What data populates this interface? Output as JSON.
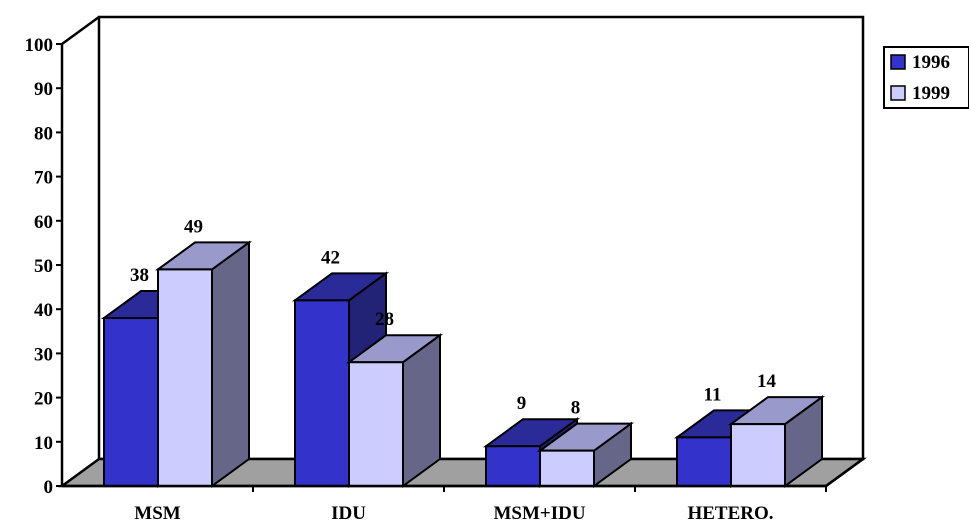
{
  "chart_data": {
    "type": "bar",
    "title": "",
    "xlabel": "",
    "ylabel": "",
    "categories": [
      "MSM",
      "IDU",
      "MSM+IDU",
      "HETERO."
    ],
    "series": [
      {
        "name": "1996",
        "values": [
          38,
          42,
          9,
          11
        ],
        "color": "#3333cc",
        "top_color": "#2a2a99",
        "side_color": "#222277"
      },
      {
        "name": "1999",
        "values": [
          49,
          28,
          8,
          14
        ],
        "color": "#ccccff",
        "top_color": "#9999cc",
        "side_color": "#666688"
      }
    ],
    "ylim": [
      0,
      100
    ],
    "yticks": [
      0,
      10,
      20,
      30,
      40,
      50,
      60,
      70,
      80,
      90,
      100
    ],
    "legend_position": "right",
    "grid": false,
    "floor_color": "#a0a0a0",
    "style": "3d-clustered-column"
  }
}
